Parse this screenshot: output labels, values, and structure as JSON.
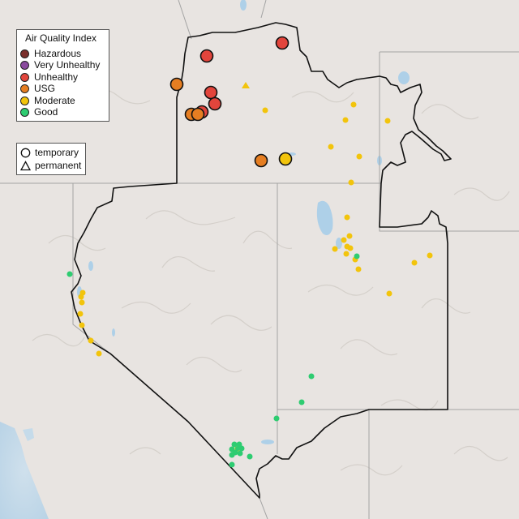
{
  "map": {
    "colors": {
      "land": "#e8e4e1",
      "water": "#c5dbea",
      "lakes": "#aed0e8",
      "relief": "#d4cfca",
      "state_line": "#9a9a9a",
      "region_outline": "#111111"
    },
    "legend": {
      "title": "Air Quality Index",
      "categories": [
        {
          "label": "Hazardous",
          "color": "#7a2e2b"
        },
        {
          "label": "Very Unhealthy",
          "color": "#8a4a9e"
        },
        {
          "label": "Unhealthy",
          "color": "#e2453c"
        },
        {
          "label": "USG",
          "color": "#e67e22"
        },
        {
          "label": "Moderate",
          "color": "#f2c40c"
        },
        {
          "label": "Good",
          "color": "#2ecc71"
        }
      ],
      "types": [
        {
          "label": "temporary",
          "icon": "circle-icon"
        },
        {
          "label": "permanent",
          "icon": "triangle-icon"
        }
      ]
    }
  }
}
